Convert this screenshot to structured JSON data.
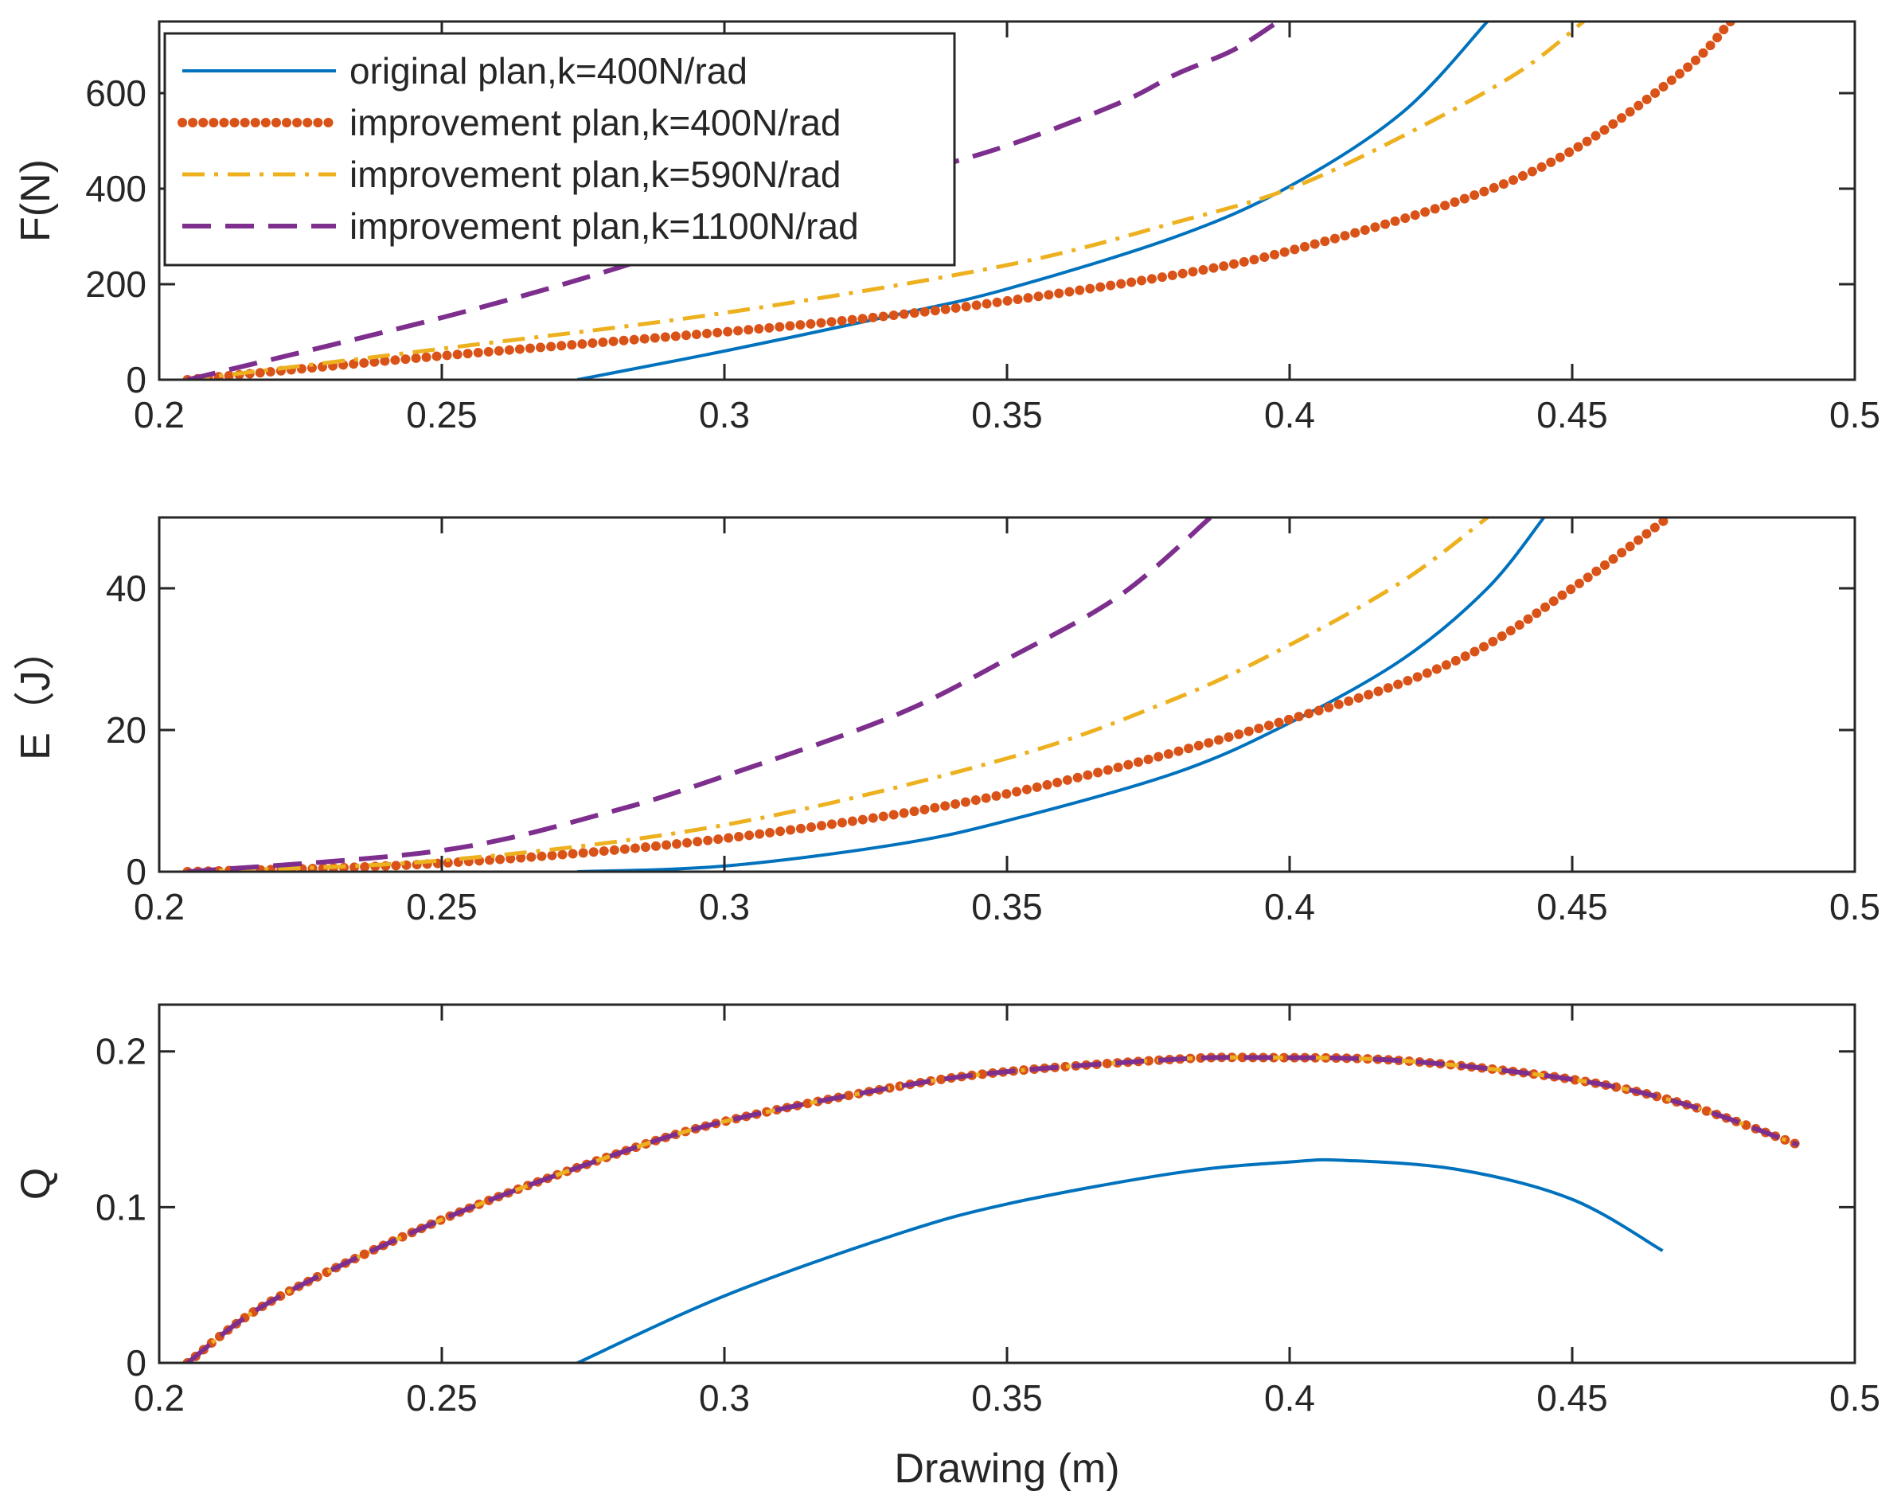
{
  "figure": {
    "xlabel": "Drawing (m)",
    "colors": {
      "original": "#0072BD",
      "improve400": "#D95319",
      "improve590": "#EDB120",
      "improve1100": "#7E2F8E",
      "axis": "#262626"
    }
  },
  "legend": {
    "placement": "top-left of first subplot",
    "entries": [
      {
        "label": "original plan,k=400N/rad",
        "color": "#0072BD",
        "style": "solid"
      },
      {
        "label": "improvement plan,k=400N/rad",
        "color": "#D95319",
        "style": "dotted"
      },
      {
        "label": "improvement plan,k=590N/rad",
        "color": "#EDB120",
        "style": "dashdot"
      },
      {
        "label": "improvement plan,k=1100N/rad",
        "color": "#7E2F8E",
        "style": "dashed"
      }
    ]
  },
  "chart_data": [
    {
      "type": "line",
      "ylabel": "F(N)",
      "xlim": [
        0.2,
        0.5
      ],
      "ylim": [
        0,
        750
      ],
      "xticks": [
        0.2,
        0.25,
        0.3,
        0.35,
        0.4,
        0.45,
        0.5
      ],
      "xtick_labels": [
        "0.2",
        "0.25",
        "0.3",
        "0.35",
        "0.4",
        "0.45",
        "0.5"
      ],
      "yticks": [
        0,
        200,
        400,
        600
      ],
      "ytick_labels": [
        "0",
        "200",
        "400",
        "600"
      ],
      "series": [
        {
          "name": "original plan,k=400N/rad",
          "x": [
            0.274,
            0.3,
            0.33,
            0.35,
            0.38,
            0.4,
            0.42,
            0.435
          ],
          "y": [
            0,
            60,
            135,
            190,
            300,
            405,
            560,
            750
          ]
        },
        {
          "name": "improvement plan,k=400N/rad",
          "x": [
            0.205,
            0.25,
            0.3,
            0.33,
            0.35,
            0.38,
            0.4,
            0.43,
            0.45,
            0.47,
            0.478
          ],
          "y": [
            0,
            50,
            100,
            135,
            165,
            220,
            270,
            375,
            480,
            650,
            750
          ]
        },
        {
          "name": "improvement plan,k=590N/rad",
          "x": [
            0.205,
            0.25,
            0.3,
            0.35,
            0.38,
            0.4,
            0.42,
            0.44,
            0.452
          ],
          "y": [
            0,
            65,
            140,
            240,
            330,
            400,
            510,
            640,
            750
          ]
        },
        {
          "name": "improvement plan,k=1100N/rad",
          "x": [
            0.205,
            0.25,
            0.28,
            0.3,
            0.33,
            0.35,
            0.37,
            0.38,
            0.39,
            0.398
          ],
          "y": [
            0,
            130,
            230,
            310,
            420,
            490,
            580,
            640,
            690,
            750
          ]
        }
      ]
    },
    {
      "type": "line",
      "ylabel": "E（J）",
      "xlim": [
        0.2,
        0.5
      ],
      "ylim": [
        0,
        50
      ],
      "xticks": [
        0.2,
        0.25,
        0.3,
        0.35,
        0.4,
        0.45,
        0.5
      ],
      "xtick_labels": [
        "0.2",
        "0.25",
        "0.3",
        "0.35",
        "0.4",
        "0.45",
        "0.5"
      ],
      "yticks": [
        0,
        20,
        40
      ],
      "ytick_labels": [
        "0",
        "20",
        "40"
      ],
      "series": [
        {
          "name": "original plan,k=400N/rad",
          "x": [
            0.274,
            0.3,
            0.33,
            0.35,
            0.38,
            0.4,
            0.42,
            0.435,
            0.445
          ],
          "y": [
            0,
            0.8,
            3.8,
            7.2,
            14,
            21,
            30,
            40,
            50
          ]
        },
        {
          "name": "improvement plan,k=400N/rad",
          "x": [
            0.205,
            0.25,
            0.3,
            0.35,
            0.4,
            0.43,
            0.45,
            0.467
          ],
          "y": [
            0,
            1.2,
            4.7,
            11,
            21.5,
            30,
            40,
            50
          ]
        },
        {
          "name": "improvement plan,k=590N/rad",
          "x": [
            0.205,
            0.25,
            0.3,
            0.35,
            0.38,
            0.4,
            0.42,
            0.435
          ],
          "y": [
            0,
            1.6,
            6.6,
            16,
            24.5,
            32,
            41,
            50
          ]
        },
        {
          "name": "improvement plan,k=1100N/rad",
          "x": [
            0.205,
            0.25,
            0.28,
            0.3,
            0.33,
            0.35,
            0.37,
            0.386
          ],
          "y": [
            0,
            3,
            8.5,
            13.5,
            22,
            30,
            39,
            50
          ]
        }
      ]
    },
    {
      "type": "line",
      "ylabel": "Q",
      "xlim": [
        0.2,
        0.5
      ],
      "ylim": [
        0,
        0.23
      ],
      "xticks": [
        0.2,
        0.25,
        0.3,
        0.35,
        0.4,
        0.45,
        0.5
      ],
      "xtick_labels": [
        "0.2",
        "0.25",
        "0.3",
        "0.35",
        "0.4",
        "0.45",
        "0.5"
      ],
      "yticks": [
        0,
        0.1,
        0.2
      ],
      "ytick_labels": [
        "0",
        "0.1",
        "0.2"
      ],
      "series": [
        {
          "name": "original plan,k=400N/rad",
          "x": [
            0.274,
            0.3,
            0.33,
            0.35,
            0.38,
            0.4,
            0.41,
            0.43,
            0.45,
            0.466
          ],
          "y": [
            0,
            0.043,
            0.082,
            0.102,
            0.122,
            0.129,
            0.13,
            0.124,
            0.105,
            0.072
          ]
        },
        {
          "name": "improvement plan,k=400N/rad",
          "x": [
            0.205,
            0.22,
            0.25,
            0.28,
            0.3,
            0.33,
            0.35,
            0.38,
            0.395,
            0.42,
            0.45,
            0.47,
            0.49
          ],
          "y": [
            0,
            0.04,
            0.092,
            0.133,
            0.155,
            0.177,
            0.187,
            0.195,
            0.196,
            0.194,
            0.182,
            0.166,
            0.14
          ]
        },
        {
          "name": "improvement plan,k=590N/rad",
          "x": [
            0.205,
            0.22,
            0.25,
            0.28,
            0.3,
            0.33,
            0.35,
            0.38,
            0.395,
            0.42,
            0.45,
            0.47,
            0.49
          ],
          "y": [
            0,
            0.04,
            0.092,
            0.133,
            0.155,
            0.177,
            0.187,
            0.195,
            0.196,
            0.194,
            0.182,
            0.166,
            0.14
          ]
        },
        {
          "name": "improvement plan,k=1100N/rad",
          "x": [
            0.205,
            0.22,
            0.25,
            0.28,
            0.3,
            0.33,
            0.35,
            0.38,
            0.395,
            0.42,
            0.45,
            0.47,
            0.49
          ],
          "y": [
            0,
            0.04,
            0.092,
            0.133,
            0.155,
            0.177,
            0.187,
            0.195,
            0.196,
            0.194,
            0.182,
            0.166,
            0.14
          ]
        }
      ]
    }
  ]
}
